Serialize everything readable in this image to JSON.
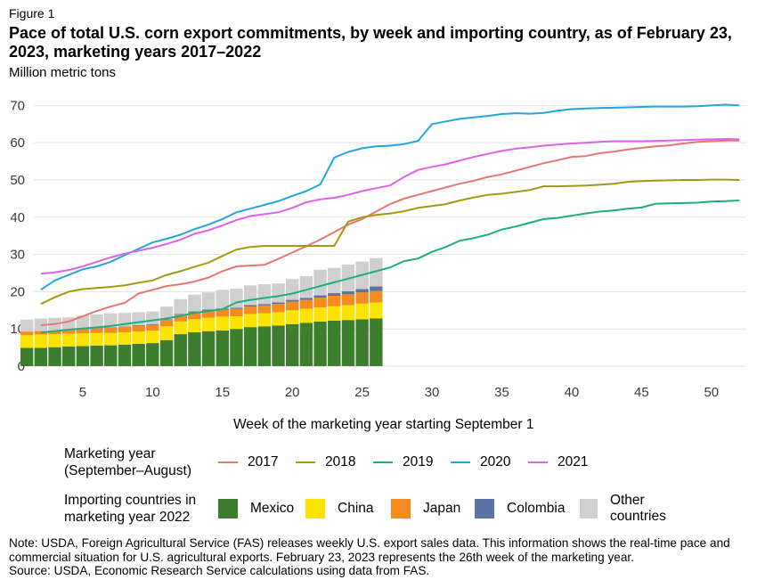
{
  "figure_label": "Figure 1",
  "title": "Pace of total U.S. corn export commitments, by week and importing country, as of February 23, 2023, marketing years 2017–2022",
  "note": "Note: USDA, Foreign Agricultural Service (FAS) releases weekly U.S. export sales data. This information shows the real-time pace and commercial situation for U.S. agricultural exports. February 23, 2023 represents the 26th week of the marketing year.",
  "source": "Source: USDA, Economic Research Service calculations using data from FAS.",
  "legend": {
    "lines_title": "Marketing year (September–August)",
    "bars_title": "Importing countries in marketing year 2022"
  },
  "chart_data": {
    "type": "line",
    "ylabel": "Million metric tons",
    "xlabel": "Week of the marketing year starting September 1",
    "xlim": [
      1.5,
      52.5
    ],
    "ylim": [
      0,
      72
    ],
    "xticks": [
      5,
      10,
      15,
      20,
      25,
      30,
      35,
      40,
      45,
      50
    ],
    "yticks": [
      0,
      10,
      20,
      30,
      40,
      50,
      60,
      70
    ],
    "grid": "horizontal",
    "series": [
      {
        "name": "2017",
        "color": "#e8766f",
        "values": [
          11.0,
          11.3,
          12.0,
          13.4,
          14.8,
          16.0,
          17.0,
          19.5,
          20.5,
          21.5,
          22.0,
          22.7,
          23.8,
          25.5,
          26.8,
          27.0,
          27.2,
          28.8,
          30.5,
          32.2,
          34.0,
          36.0,
          38.0,
          39.5,
          41.5,
          43.5,
          45.0,
          46.0,
          47.0,
          48.0,
          49.0,
          49.8,
          50.8,
          51.5,
          52.5,
          53.5,
          54.5,
          55.3,
          56.2,
          56.4,
          57.2,
          57.6,
          58.2,
          58.6,
          59.0,
          59.3,
          59.8,
          60.2,
          60.4,
          60.6,
          60.6
        ]
      },
      {
        "name": "2018",
        "color": "#a19b13",
        "values": [
          16.7,
          18.5,
          20.0,
          20.7,
          21.0,
          21.3,
          21.7,
          22.4,
          23.0,
          24.5,
          25.5,
          26.7,
          27.8,
          29.6,
          31.3,
          32.0,
          32.3,
          32.3,
          32.3,
          32.3,
          32.3,
          32.3,
          38.8,
          40.0,
          40.6,
          41.0,
          41.6,
          42.5,
          43.0,
          43.5,
          44.5,
          45.3,
          46.0,
          46.3,
          46.8,
          47.3,
          48.3,
          48.3,
          48.4,
          48.5,
          48.7,
          49.0,
          49.5,
          49.7,
          49.8,
          49.9,
          50.0,
          50.0,
          50.1,
          50.1,
          50.0
        ]
      },
      {
        "name": "2019",
        "color": "#1dae7f",
        "values": [
          9.0,
          9.4,
          9.8,
          10.1,
          10.4,
          10.8,
          11.3,
          11.8,
          12.3,
          12.8,
          13.5,
          14.3,
          14.8,
          15.3,
          17.1,
          17.8,
          18.3,
          18.8,
          19.5,
          20.5,
          21.5,
          22.5,
          23.5,
          24.5,
          25.5,
          26.5,
          28.2,
          28.9,
          30.7,
          32.0,
          33.7,
          34.4,
          35.3,
          36.7,
          37.5,
          38.5,
          39.5,
          39.8,
          40.4,
          41.0,
          41.5,
          41.8,
          42.3,
          42.6,
          43.6,
          43.7,
          43.8,
          43.9,
          44.2,
          44.3,
          44.5
        ]
      },
      {
        "name": "2020",
        "color": "#22a7dc",
        "values": [
          20.5,
          23.0,
          24.5,
          26.0,
          26.8,
          28.0,
          29.8,
          31.5,
          33.2,
          34.2,
          35.3,
          36.8,
          38.0,
          39.5,
          41.3,
          42.3,
          43.3,
          44.3,
          45.7,
          47.0,
          48.8,
          56.0,
          57.5,
          58.5,
          59.0,
          59.2,
          59.6,
          60.5,
          65.0,
          65.7,
          66.4,
          66.8,
          67.2,
          67.7,
          67.9,
          67.8,
          68.0,
          68.6,
          69.0,
          69.2,
          69.3,
          69.4,
          69.5,
          69.6,
          69.7,
          69.7,
          69.7,
          69.8,
          70.0,
          70.2,
          70.0
        ]
      },
      {
        "name": "2021",
        "color": "#e062e8",
        "values": [
          24.8,
          25.2,
          25.8,
          26.8,
          28.0,
          29.2,
          30.2,
          31.0,
          31.8,
          32.8,
          34.0,
          35.5,
          36.5,
          37.8,
          39.2,
          40.3,
          40.8,
          41.3,
          42.5,
          44.0,
          44.8,
          45.2,
          46.0,
          47.0,
          47.8,
          48.5,
          50.8,
          52.7,
          53.5,
          54.2,
          55.2,
          56.2,
          57.0,
          57.8,
          58.4,
          58.8,
          59.2,
          59.5,
          59.8,
          60.0,
          60.2,
          60.4,
          60.4,
          60.4,
          60.5,
          60.6,
          60.7,
          60.8,
          60.9,
          61.0,
          60.9
        ]
      }
    ],
    "stacked_bars": {
      "type": "bar",
      "weeks": [
        1,
        2,
        3,
        4,
        5,
        6,
        7,
        8,
        9,
        10,
        11,
        12,
        13,
        14,
        15,
        16,
        17,
        18,
        19,
        20,
        21,
        22,
        23,
        24,
        25,
        26
      ],
      "series": [
        {
          "name": "Mexico",
          "color": "#3d7d2e",
          "values": [
            4.9,
            4.9,
            5.1,
            5.3,
            5.4,
            5.5,
            5.6,
            5.8,
            6.0,
            6.2,
            7.0,
            8.6,
            9.1,
            9.4,
            9.6,
            10.0,
            10.5,
            10.7,
            10.9,
            11.3,
            11.6,
            12.0,
            12.2,
            12.4,
            12.6,
            12.8
          ]
        },
        {
          "name": "China",
          "color": "#fde400",
          "values": [
            3.4,
            3.6,
            3.5,
            3.4,
            3.4,
            3.4,
            3.3,
            3.3,
            3.3,
            3.3,
            3.7,
            3.4,
            3.5,
            3.6,
            3.7,
            3.4,
            3.5,
            3.5,
            3.6,
            3.7,
            3.8,
            3.8,
            3.9,
            4.0,
            4.2,
            4.3
          ]
        },
        {
          "name": "Japan",
          "color": "#f68b1f",
          "values": [
            1.0,
            1.0,
            1.0,
            1.2,
            1.3,
            1.3,
            1.4,
            1.5,
            1.5,
            1.6,
            1.7,
            1.8,
            1.8,
            1.9,
            1.9,
            2.0,
            2.0,
            2.1,
            2.2,
            2.3,
            2.4,
            2.6,
            2.8,
            2.9,
            3.0,
            3.1
          ]
        },
        {
          "name": "Colombia",
          "color": "#5c73a4",
          "values": [
            0.0,
            0.0,
            0.0,
            0.0,
            0.1,
            0.1,
            0.1,
            0.1,
            0.2,
            0.2,
            0.2,
            0.2,
            0.3,
            0.3,
            0.3,
            0.3,
            0.4,
            0.4,
            0.4,
            0.5,
            0.5,
            0.6,
            0.7,
            0.8,
            0.9,
            1.2
          ]
        },
        {
          "name": "Other countries",
          "color": "#cfcfcf",
          "values": [
            3.2,
            3.3,
            3.4,
            3.2,
            3.4,
            3.6,
            3.8,
            3.6,
            3.5,
            3.4,
            3.4,
            4.0,
            4.5,
            4.6,
            5.0,
            5.1,
            5.3,
            5.3,
            5.1,
            5.6,
            5.9,
            6.9,
            6.8,
            7.2,
            7.4,
            7.6
          ]
        }
      ]
    }
  }
}
